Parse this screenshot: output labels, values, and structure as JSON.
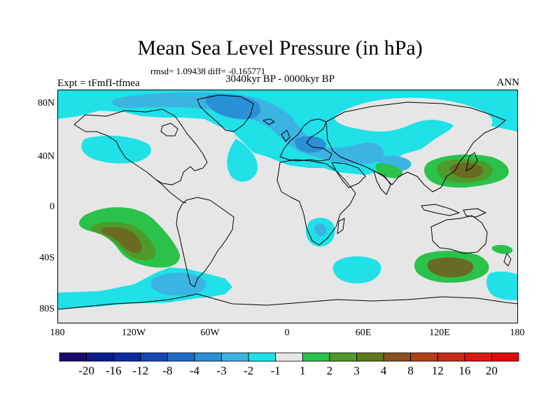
{
  "title": "Mean Sea Level Pressure (in hPa)",
  "stats": "rmsd= 1.09438  diff= -0.165771",
  "experiment": "Expt = tFmfI-tfmea",
  "period": "3040kyr BP - 0000kyr BP",
  "season": "ANN",
  "lat_labels": [
    "80N",
    "40N",
    "0",
    "40S",
    "80S"
  ],
  "lon_labels": [
    "180",
    "120W",
    "60W",
    "0",
    "60E",
    "120E",
    "180"
  ],
  "colorbar": {
    "labels": [
      "-20",
      "-16",
      "-12",
      "-8",
      "-4",
      "-3",
      "-2",
      "-1",
      "1",
      "2",
      "3",
      "4",
      "8",
      "12",
      "16",
      "20"
    ],
    "colors": [
      "#1a0a6e",
      "#0d1a8c",
      "#0a2aa0",
      "#1446b4",
      "#1f6ac8",
      "#2a90d6",
      "#3cb4e2",
      "#20e0e8",
      "#e6e6e6",
      "#2ac24a",
      "#4e9a2a",
      "#5c7a18",
      "#8a5020",
      "#b04018",
      "#c82a14",
      "#d81a10",
      "#e00a0a"
    ]
  },
  "field_colors": {
    "ocean_neutral": "#e6e6e6",
    "minus1": "#20e0e8",
    "minus2": "#3cb4e2",
    "minus3": "#2a90d6",
    "plus1": "#2ac24a",
    "plus2": "#4e9a2a",
    "plus3": "#6a6a22"
  }
}
